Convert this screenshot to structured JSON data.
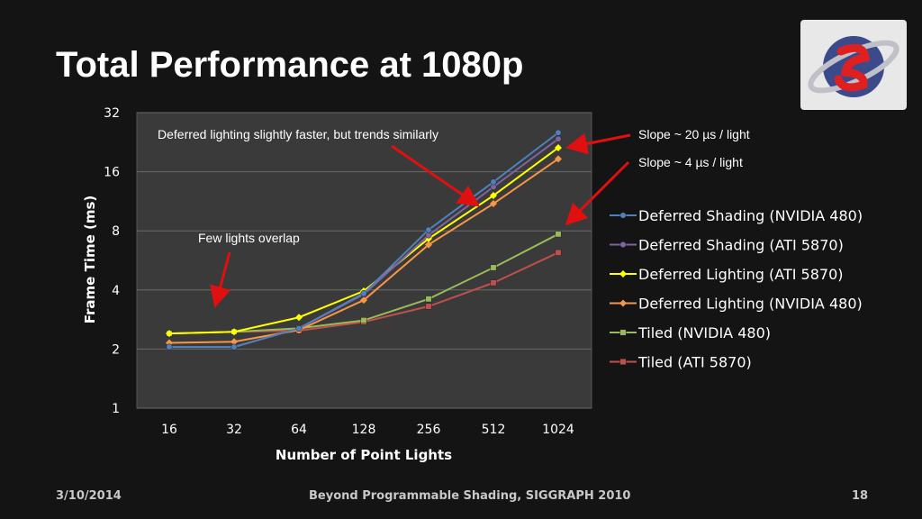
{
  "slide": {
    "title": "Total Performance at 1080p",
    "footer_date": "3/10/2014",
    "footer_center": "Beyond Programmable Shading, SIGGRAPH 2010",
    "footer_page": "18",
    "logo_icon": "siggraph-swirl-logo-icon"
  },
  "chart_data": {
    "type": "line",
    "title": "",
    "xlabel": "Number of Point Lights",
    "ylabel": "Frame Time (ms)",
    "x": [
      16,
      32,
      64,
      128,
      256,
      512,
      1024
    ],
    "categories": [
      "16",
      "32",
      "64",
      "128",
      "256",
      "512",
      "1024"
    ],
    "y_scale": "log2",
    "ylim": [
      1,
      32
    ],
    "y_ticks": [
      "1",
      "2",
      "4",
      "8",
      "16",
      "32"
    ],
    "grid": true,
    "legend_position": "right",
    "series": [
      {
        "name": "Deferred Shading (NVIDIA 480)",
        "color": "#4f81bd",
        "marker": "circle",
        "values": [
          2.05,
          2.05,
          2.55,
          3.85,
          8.1,
          14.2,
          25.3
        ]
      },
      {
        "name": "Deferred Shading (ATI 5870)",
        "color": "#8064a2",
        "marker": "circle",
        "values": [
          2.05,
          2.05,
          2.55,
          3.8,
          7.6,
          13.4,
          23.5
        ]
      },
      {
        "name": "Deferred Lighting (ATI 5870)",
        "color": "#ffff00",
        "marker": "diamond",
        "values": [
          2.4,
          2.45,
          2.9,
          3.95,
          7.3,
          12.1,
          21.2
        ]
      },
      {
        "name": "Deferred Lighting (NVIDIA 480)",
        "color": "#f79646",
        "marker": "diamond",
        "values": [
          2.15,
          2.18,
          2.5,
          3.55,
          6.8,
          11.0,
          18.6
        ]
      },
      {
        "name": "Tiled (NVIDIA 480)",
        "color": "#9bbb59",
        "marker": "square",
        "values": [
          2.4,
          2.45,
          2.55,
          2.8,
          3.6,
          5.2,
          7.7
        ]
      },
      {
        "name": "Tiled (ATI 5870)",
        "color": "#c0504d",
        "marker": "square",
        "values": [
          2.4,
          2.45,
          2.48,
          2.75,
          3.3,
          4.35,
          6.2
        ]
      }
    ],
    "annotations": [
      {
        "text": "Deferred lighting slightly faster, but trends similarly"
      },
      {
        "text": "Few lights overlap"
      },
      {
        "text": "Slope ~ 20 µs / light"
      },
      {
        "text": "Slope ~ 4 µs / light"
      }
    ]
  }
}
